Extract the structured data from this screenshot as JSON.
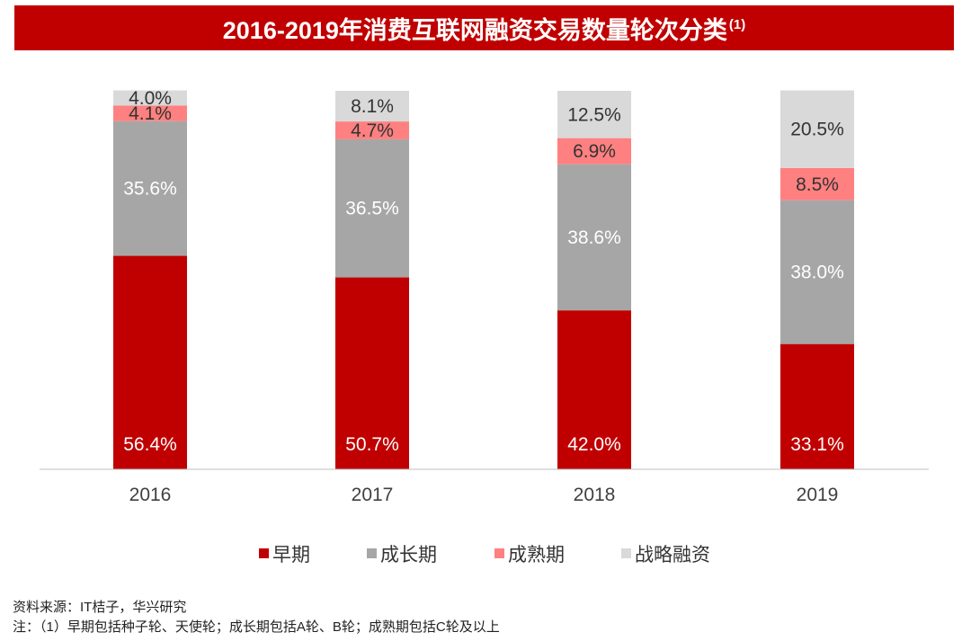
{
  "header": {
    "title": "2016-2019年消费互联网融资交易数量轮次分类",
    "title_note": "(1)"
  },
  "chart_data": {
    "type": "bar",
    "stacked": true,
    "percent": true,
    "categories": [
      "2016",
      "2017",
      "2018",
      "2019"
    ],
    "series": [
      {
        "name": "早期",
        "color": "#c00000",
        "label_color": "#ffffff",
        "values": [
          56.4,
          50.7,
          42.0,
          33.1
        ]
      },
      {
        "name": "成长期",
        "color": "#a6a6a6",
        "label_color": "#ffffff",
        "values": [
          35.6,
          36.5,
          38.6,
          38.0
        ]
      },
      {
        "name": "成熟期",
        "color": "#ff8080",
        "label_color": "#333333",
        "values": [
          4.1,
          4.7,
          6.9,
          8.5
        ]
      },
      {
        "name": "战略融资",
        "color": "#d9d9d9",
        "label_color": "#333333",
        "values": [
          4.0,
          8.1,
          12.5,
          20.5
        ]
      }
    ],
    "ylim": [
      0,
      100
    ],
    "legend_position": "bottom",
    "grid": false
  },
  "footer": {
    "source": "资料来源：IT桔子，华兴研究",
    "note": "注：（1）早期包括种子轮、天使轮；成长期包括A轮、B轮；成熟期包括C轮及以上"
  }
}
